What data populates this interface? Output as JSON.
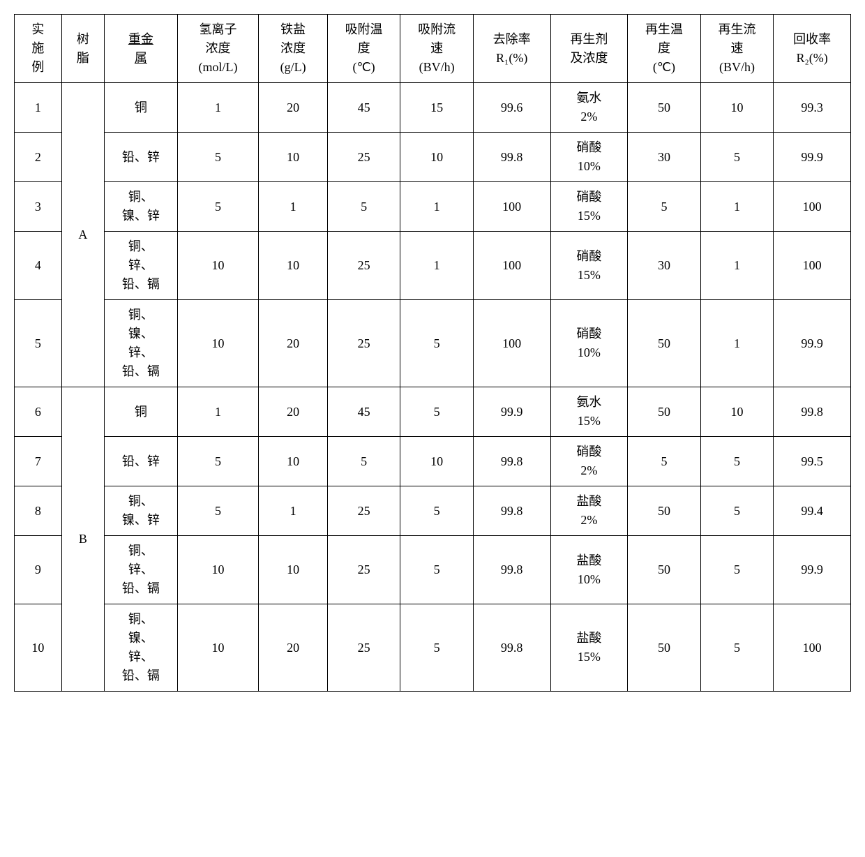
{
  "headers": {
    "example": "实\n施\n例",
    "resin": "树\n脂",
    "metal": "重金\n属",
    "h_conc": "氢离子\n浓度\n(mol/L)",
    "fe_conc": "铁盐\n浓度\n(g/L)",
    "ads_temp": "吸附温\n度\n(℃)",
    "ads_flow": "吸附流\n速\n(BV/h)",
    "r1": "去除率\nR₁(%)",
    "regen": "再生剂\n及浓度",
    "reg_temp": "再生温\n度\n(℃)",
    "reg_flow": "再生流\n速\n(BV/h)",
    "r2": "回收率\nR₂(%)"
  },
  "groups": [
    {
      "resin": "A",
      "span": 5
    },
    {
      "resin": "B",
      "span": 5
    }
  ],
  "rows": [
    {
      "ex": "1",
      "metal": "铜",
      "h": "1",
      "fe": "20",
      "at": "45",
      "af": "15",
      "r1": "99.6",
      "reg": "氨水\n2%",
      "rt": "50",
      "rf": "10",
      "r2": "99.3"
    },
    {
      "ex": "2",
      "metal": "铅、锌",
      "h": "5",
      "fe": "10",
      "at": "25",
      "af": "10",
      "r1": "99.8",
      "reg": "硝酸\n10%",
      "rt": "30",
      "rf": "5",
      "r2": "99.9"
    },
    {
      "ex": "3",
      "metal": "铜、\n镍、锌",
      "h": "5",
      "fe": "1",
      "at": "5",
      "af": "1",
      "r1": "100",
      "reg": "硝酸\n15%",
      "rt": "5",
      "rf": "1",
      "r2": "100"
    },
    {
      "ex": "4",
      "metal": "铜、\n锌、\n铅、镉",
      "h": "10",
      "fe": "10",
      "at": "25",
      "af": "1",
      "r1": "100",
      "reg": "硝酸\n15%",
      "rt": "30",
      "rf": "1",
      "r2": "100"
    },
    {
      "ex": "5",
      "metal": "铜、\n镍、\n锌、\n铅、镉",
      "h": "10",
      "fe": "20",
      "at": "25",
      "af": "5",
      "r1": "100",
      "reg": "硝酸\n10%",
      "rt": "50",
      "rf": "1",
      "r2": "99.9"
    },
    {
      "ex": "6",
      "metal": "铜",
      "h": "1",
      "fe": "20",
      "at": "45",
      "af": "5",
      "r1": "99.9",
      "reg": "氨水\n15%",
      "rt": "50",
      "rf": "10",
      "r2": "99.8"
    },
    {
      "ex": "7",
      "metal": "铅、锌",
      "h": "5",
      "fe": "10",
      "at": "5",
      "af": "10",
      "r1": "99.8",
      "reg": "硝酸\n2%",
      "rt": "5",
      "rf": "5",
      "r2": "99.5"
    },
    {
      "ex": "8",
      "metal": "铜、\n镍、锌",
      "h": "5",
      "fe": "1",
      "at": "25",
      "af": "5",
      "r1": "99.8",
      "reg": "盐酸\n2%",
      "rt": "50",
      "rf": "5",
      "r2": "99.4"
    },
    {
      "ex": "9",
      "metal": "铜、\n锌、\n铅、镉",
      "h": "10",
      "fe": "10",
      "at": "25",
      "af": "5",
      "r1": "99.8",
      "reg": "盐酸\n10%",
      "rt": "50",
      "rf": "5",
      "r2": "99.9"
    },
    {
      "ex": "10",
      "metal": "铜、\n镍、\n锌、\n铅、镉",
      "h": "10",
      "fe": "20",
      "at": "25",
      "af": "5",
      "r1": "99.8",
      "reg": "盐酸\n15%",
      "rt": "50",
      "rf": "5",
      "r2": "100"
    }
  ],
  "underline_metal_header": true
}
